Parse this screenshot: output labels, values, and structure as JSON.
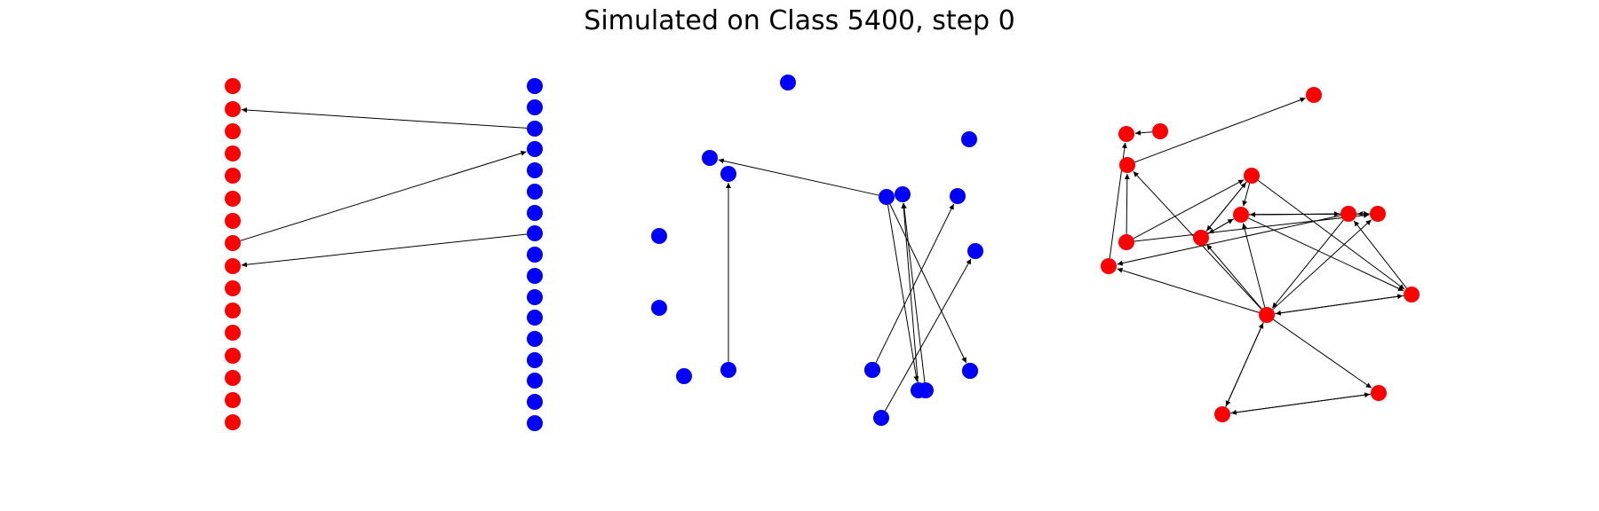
{
  "title": "Simulated on Class 5400, step 0",
  "colors": {
    "red": "#ff0000",
    "blue": "#0000ff",
    "edge": "#000000",
    "background": "#ffffff"
  },
  "panels": [
    {
      "name": "bipartite",
      "nodes": [
        {
          "id": "r0",
          "c": "red"
        },
        {
          "id": "r1",
          "c": "red"
        },
        {
          "id": "r2",
          "c": "red"
        },
        {
          "id": "r3",
          "c": "red"
        },
        {
          "id": "r4",
          "c": "red"
        },
        {
          "id": "r5",
          "c": "red"
        },
        {
          "id": "r6",
          "c": "red"
        },
        {
          "id": "r7",
          "c": "red"
        },
        {
          "id": "r8",
          "c": "red"
        },
        {
          "id": "r9",
          "c": "red"
        },
        {
          "id": "r10",
          "c": "red"
        },
        {
          "id": "r11",
          "c": "red"
        },
        {
          "id": "r12",
          "c": "red"
        },
        {
          "id": "r13",
          "c": "red"
        },
        {
          "id": "r14",
          "c": "red"
        },
        {
          "id": "r15",
          "c": "red"
        },
        {
          "id": "b0",
          "c": "blue"
        },
        {
          "id": "b1",
          "c": "blue"
        },
        {
          "id": "b2",
          "c": "blue"
        },
        {
          "id": "b3",
          "c": "blue"
        },
        {
          "id": "b4",
          "c": "blue"
        },
        {
          "id": "b5",
          "c": "blue"
        },
        {
          "id": "b6",
          "c": "blue"
        },
        {
          "id": "b7",
          "c": "blue"
        },
        {
          "id": "b8",
          "c": "blue"
        },
        {
          "id": "b9",
          "c": "blue"
        },
        {
          "id": "b10",
          "c": "blue"
        },
        {
          "id": "b11",
          "c": "blue"
        },
        {
          "id": "b12",
          "c": "blue"
        },
        {
          "id": "b13",
          "c": "blue"
        },
        {
          "id": "b14",
          "c": "blue"
        },
        {
          "id": "b15",
          "c": "blue"
        },
        {
          "id": "b16",
          "c": "blue"
        }
      ],
      "edges": [
        [
          "b2",
          "r1"
        ],
        [
          "r7",
          "b3"
        ],
        [
          "b7",
          "r8"
        ]
      ]
    },
    {
      "name": "blue-graph",
      "nodes": [
        {
          "id": "t",
          "c": "blue"
        },
        {
          "id": "a",
          "c": "blue"
        },
        {
          "id": "b",
          "c": "blue"
        },
        {
          "id": "c",
          "c": "blue"
        },
        {
          "id": "d",
          "c": "blue"
        },
        {
          "id": "e",
          "c": "blue"
        },
        {
          "id": "f",
          "c": "blue"
        },
        {
          "id": "g",
          "c": "blue"
        },
        {
          "id": "h",
          "c": "blue"
        },
        {
          "id": "i",
          "c": "blue"
        },
        {
          "id": "j",
          "c": "blue"
        },
        {
          "id": "k",
          "c": "blue"
        },
        {
          "id": "l",
          "c": "blue"
        },
        {
          "id": "m",
          "c": "blue"
        },
        {
          "id": "n",
          "c": "blue"
        },
        {
          "id": "o",
          "c": "blue"
        },
        {
          "id": "p",
          "c": "blue"
        },
        {
          "id": "q",
          "c": "blue"
        },
        {
          "id": "s",
          "c": "blue"
        }
      ],
      "edges": [
        [
          "f",
          "a"
        ],
        [
          "p",
          "b"
        ],
        [
          "f",
          "n"
        ],
        [
          "f",
          "q"
        ],
        [
          "o",
          "g"
        ],
        [
          "n",
          "g"
        ],
        [
          "m",
          "h"
        ],
        [
          "s",
          "j"
        ]
      ]
    },
    {
      "name": "red-graph",
      "nodes": [
        {
          "id": "A",
          "c": "red"
        },
        {
          "id": "B",
          "c": "red"
        },
        {
          "id": "C",
          "c": "red"
        },
        {
          "id": "D",
          "c": "red"
        },
        {
          "id": "E",
          "c": "red"
        },
        {
          "id": "F",
          "c": "red"
        },
        {
          "id": "G",
          "c": "red"
        },
        {
          "id": "H",
          "c": "red"
        },
        {
          "id": "I",
          "c": "red"
        },
        {
          "id": "J",
          "c": "red"
        },
        {
          "id": "K",
          "c": "red"
        },
        {
          "id": "L",
          "c": "red"
        },
        {
          "id": "M",
          "c": "red"
        },
        {
          "id": "N",
          "c": "red"
        },
        {
          "id": "O",
          "c": "red"
        }
      ],
      "edges": [
        [
          "C",
          "B"
        ],
        [
          "E",
          "A"
        ],
        [
          "G",
          "B"
        ],
        [
          "H",
          "D"
        ],
        [
          "F",
          "D"
        ],
        [
          "F",
          "K"
        ],
        [
          "H",
          "I"
        ],
        [
          "K",
          "I"
        ],
        [
          "D",
          "I"
        ],
        [
          "D",
          "M"
        ],
        [
          "F",
          "E"
        ],
        [
          "I",
          "K"
        ],
        [
          "J",
          "G"
        ],
        [
          "J",
          "L"
        ],
        [
          "L",
          "G"
        ],
        [
          "L",
          "K"
        ],
        [
          "L",
          "I"
        ],
        [
          "L",
          "M"
        ],
        [
          "L",
          "E"
        ],
        [
          "L",
          "H"
        ],
        [
          "M",
          "J"
        ],
        [
          "N",
          "L"
        ],
        [
          "L",
          "O"
        ],
        [
          "N",
          "O"
        ],
        [
          "O",
          "N"
        ],
        [
          "M",
          "L"
        ],
        [
          "I",
          "H"
        ],
        [
          "I",
          "M"
        ],
        [
          "J",
          "K"
        ],
        [
          "D",
          "H"
        ],
        [
          "I",
          "J"
        ],
        [
          "K",
          "J"
        ],
        [
          "L",
          "N"
        ]
      ]
    }
  ]
}
